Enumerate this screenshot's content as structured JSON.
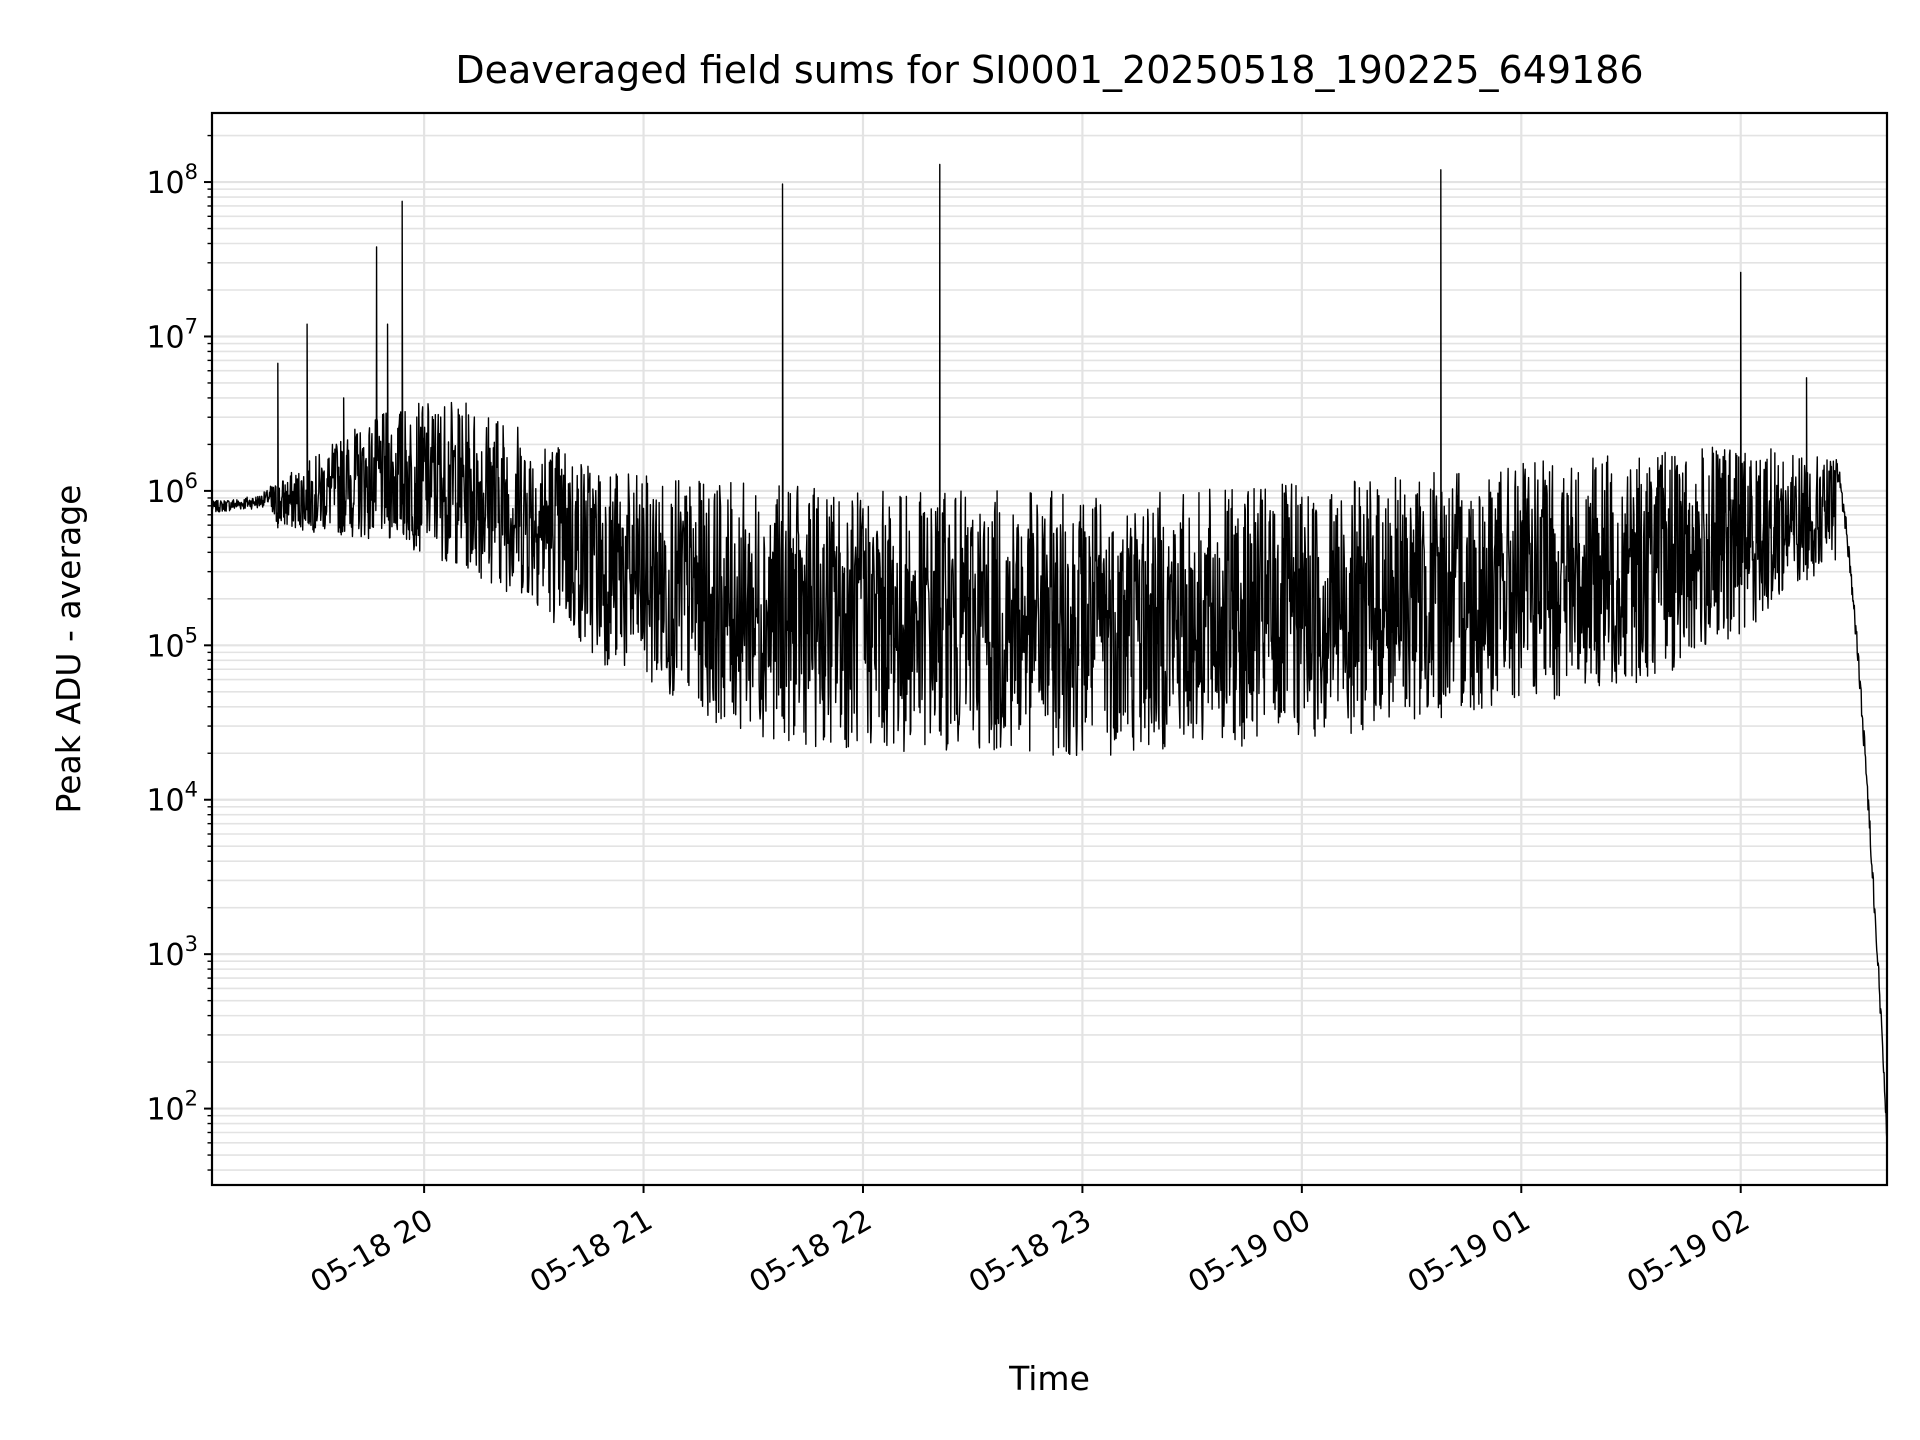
{
  "chart_data": {
    "type": "line",
    "title": "Deaveraged field sums for SI0001_20250518_190225_649186",
    "xlabel": "Time",
    "ylabel": "Peak ADU - average",
    "y_scale": "log",
    "ylim": [
      32,
      280000000
    ],
    "xlim": [
      "2025-05-18 19:02",
      "2025-05-19 02:40"
    ],
    "grid": true,
    "line_color": "#000000",
    "x_ticks": [
      {
        "t": "2025-05-18 20:00",
        "label": "05-18 20"
      },
      {
        "t": "2025-05-18 21:00",
        "label": "05-18 21"
      },
      {
        "t": "2025-05-18 22:00",
        "label": "05-18 22"
      },
      {
        "t": "2025-05-18 23:00",
        "label": "05-18 23"
      },
      {
        "t": "2025-05-19 00:00",
        "label": "05-19 00"
      },
      {
        "t": "2025-05-19 01:00",
        "label": "05-19 01"
      },
      {
        "t": "2025-05-19 02:00",
        "label": "05-19 02"
      }
    ],
    "y_ticks": [
      {
        "v": 100,
        "base": "10",
        "exp": "2"
      },
      {
        "v": 1000,
        "base": "10",
        "exp": "3"
      },
      {
        "v": 10000,
        "base": "10",
        "exp": "4"
      },
      {
        "v": 100000,
        "base": "10",
        "exp": "5"
      },
      {
        "v": 1000000,
        "base": "10",
        "exp": "6"
      },
      {
        "v": 10000000,
        "base": "10",
        "exp": "7"
      },
      {
        "v": 100000000,
        "base": "10",
        "exp": "8"
      }
    ],
    "series": [
      {
        "x": [
          "2025-05-18 19:02",
          "2025-05-18 19:10",
          "2025-05-18 19:16",
          "2025-05-18 19:20",
          "2025-05-18 19:25",
          "2025-05-18 19:28",
          "2025-05-18 19:33",
          "2025-05-18 19:38",
          "2025-05-18 19:42",
          "2025-05-18 19:47",
          "2025-05-18 19:50",
          "2025-05-18 19:54",
          "2025-05-18 19:58",
          "2025-05-18 20:02",
          "2025-05-18 20:08",
          "2025-05-18 20:15",
          "2025-05-18 20:30",
          "2025-05-18 20:45",
          "2025-05-18 21:00",
          "2025-05-18 21:20",
          "2025-05-18 21:38",
          "2025-05-18 21:40",
          "2025-05-18 22:00",
          "2025-05-18 22:21",
          "2025-05-18 22:40",
          "2025-05-18 23:00",
          "2025-05-18 23:20",
          "2025-05-18 23:35",
          "2025-05-18 23:50",
          "2025-05-19 00:05",
          "2025-05-19 00:20",
          "2025-05-19 00:35",
          "2025-05-19 00:38",
          "2025-05-19 00:45",
          "2025-05-19 01:00",
          "2025-05-19 01:15",
          "2025-05-19 01:30",
          "2025-05-19 01:45",
          "2025-05-19 01:55",
          "2025-05-19 02:00",
          "2025-05-19 02:10",
          "2025-05-19 02:18",
          "2025-05-19 02:24",
          "2025-05-19 02:28",
          "2025-05-19 02:32",
          "2025-05-19 02:36",
          "2025-05-19 02:39"
        ],
        "y": [
          600000,
          700000,
          650000,
          6700000,
          1000000,
          12000000,
          2500000,
          4000000,
          3000000,
          38000000,
          12000000,
          75000000,
          1800000,
          1500000,
          600000,
          400000,
          300000,
          250000,
          250000,
          250000,
          97000000,
          300000,
          250000,
          130000000,
          250000,
          250000,
          250000,
          250000,
          250000,
          300000,
          400000,
          500000,
          120000000,
          350000,
          300000,
          320000,
          450000,
          500000,
          600000,
          26000000,
          600000,
          5400000,
          1400000,
          90000,
          4000,
          400,
          70
        ],
        "min_envelope": [
          550000,
          560000,
          550000,
          500000,
          450000,
          350000,
          250000,
          180000,
          90000,
          60000,
          45000,
          30000,
          25000,
          22000,
          21000,
          20000,
          21000,
          20000,
          19000,
          19000,
          20000,
          21000,
          22000,
          23000,
          25000,
          28000,
          32000,
          35000,
          40000,
          45000,
          50000,
          60000,
          80000,
          120000,
          220000,
          350000
        ],
        "max_envelope": [
          900000,
          1000000,
          1500000,
          2500000,
          3500000,
          4000000,
          3500000,
          2500000,
          1800000,
          1300000,
          1200000,
          1150000,
          1100000,
          1050000,
          1050000,
          1000000,
          1000000,
          1000000,
          1000000,
          1000000,
          1000000,
          1000000,
          1050000,
          1100000,
          1150000,
          1200000,
          1300000,
          1400000,
          1500000,
          1600000,
          1700000,
          1800000,
          1900000,
          2000000,
          1800000,
          1600000
        ]
      }
    ]
  }
}
